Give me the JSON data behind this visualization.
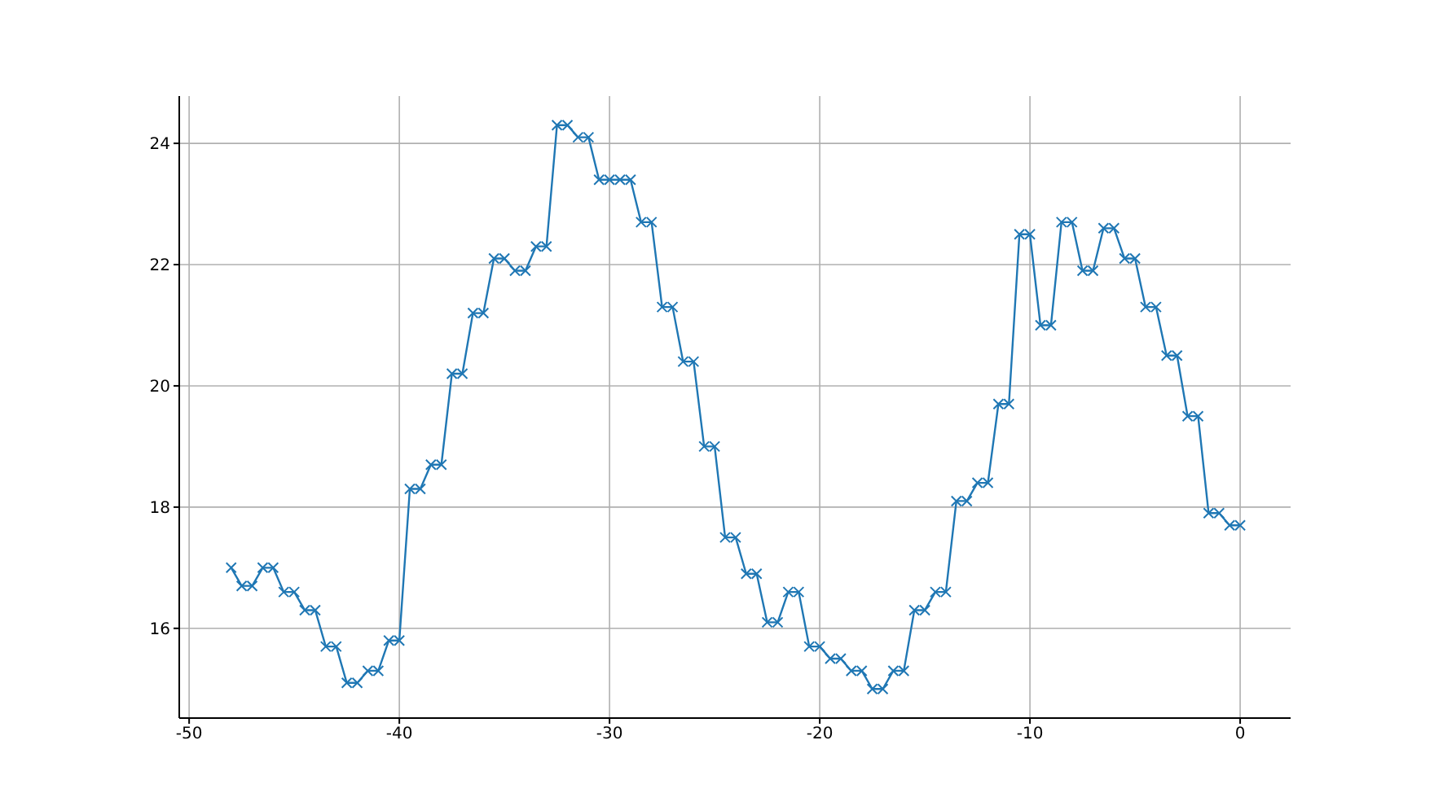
{
  "chart_data": {
    "type": "line",
    "x": [
      -48,
      -47.5,
      -47,
      -46.5,
      -46,
      -45.5,
      -45,
      -44.5,
      -44,
      -43.5,
      -43,
      -42.5,
      -42,
      -41.5,
      -41,
      -40.5,
      -40,
      -39.5,
      -39,
      -38.5,
      -38,
      -37.5,
      -37,
      -36.5,
      -36,
      -35.5,
      -35,
      -34.5,
      -34,
      -33.5,
      -33,
      -32.5,
      -32,
      -31.5,
      -31,
      -30.5,
      -30,
      -29.5,
      -29,
      -28.5,
      -28,
      -27.5,
      -27,
      -26.5,
      -26,
      -25.5,
      -25,
      -24.5,
      -24,
      -23.5,
      -23,
      -22.5,
      -22,
      -21.5,
      -21,
      -20.5,
      -20,
      -19.5,
      -19,
      -18.5,
      -18,
      -17.5,
      -17,
      -16.5,
      -16,
      -15.5,
      -15,
      -14.5,
      -14,
      -13.5,
      -13,
      -12.5,
      -12,
      -11.5,
      -11,
      -10.5,
      -10,
      -9.5,
      -9,
      -8.5,
      -8,
      -7.5,
      -7,
      -6.5,
      -6,
      -5.5,
      -5,
      -4.5,
      -4,
      -3.5,
      -3,
      -2.5,
      -2,
      -1.5,
      -1,
      -0.5,
      0
    ],
    "series": [
      {
        "color": "#1f77b4",
        "values": [
          17.0,
          16.7,
          16.7,
          17.0,
          17.0,
          16.6,
          16.6,
          16.3,
          16.3,
          15.7,
          15.7,
          15.1,
          15.1,
          15.3,
          15.3,
          15.8,
          15.8,
          18.3,
          18.3,
          18.7,
          18.7,
          20.2,
          20.2,
          21.2,
          21.2,
          22.1,
          22.1,
          21.9,
          21.9,
          22.3,
          22.3,
          24.3,
          24.3,
          24.1,
          24.1,
          23.4,
          23.4,
          23.4,
          23.4,
          22.7,
          22.7,
          21.3,
          21.3,
          20.4,
          20.4,
          19.0,
          19.0,
          17.5,
          17.5,
          16.9,
          16.9,
          16.1,
          16.1,
          16.6,
          16.6,
          15.7,
          15.7,
          15.5,
          15.5,
          15.3,
          15.3,
          15.0,
          15.0,
          15.3,
          15.3,
          16.3,
          16.3,
          16.6,
          16.6,
          18.1,
          18.1,
          18.4,
          18.4,
          19.7,
          19.7,
          22.5,
          22.5,
          21.0,
          21.0,
          22.7,
          22.7,
          21.9,
          21.9,
          22.6,
          22.6,
          22.1,
          22.1,
          21.3,
          21.3,
          20.5,
          20.5,
          19.5,
          19.5,
          17.9,
          17.9,
          17.7,
          17.7
        ]
      }
    ],
    "xlim": [
      -50.47,
      2.4
    ],
    "ylim": [
      14.52,
      24.78
    ],
    "xticks": [
      -50,
      -40,
      -30,
      -20,
      -10,
      0
    ],
    "yticks": [
      16,
      18,
      20,
      22,
      24
    ],
    "grid": true,
    "marker": "cross",
    "line_style": "solid"
  }
}
